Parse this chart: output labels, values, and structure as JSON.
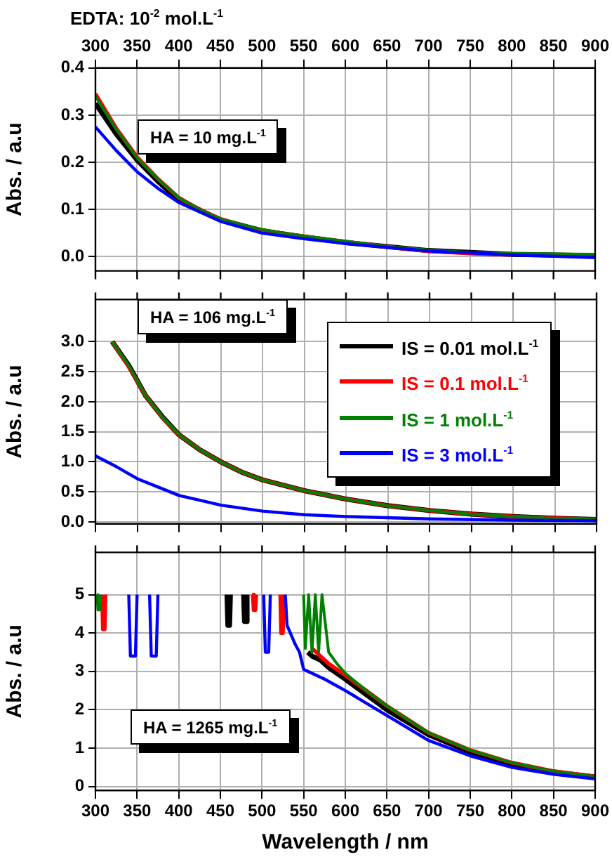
{
  "chart_data": [
    {
      "type": "line",
      "title": "EDTA: 10$^{-2}$ mol.L$^{-1}$",
      "ylabel": "Abs. / a.u",
      "annotations": [
        "HA = 10 mg.L$^{-1}$"
      ],
      "xlim": [
        300,
        900
      ],
      "xticks": [
        300,
        350,
        400,
        450,
        500,
        550,
        600,
        650,
        700,
        750,
        800,
        850,
        900
      ],
      "ylim": [
        -0.03,
        0.4
      ],
      "yticks": [
        {
          "value": 0,
          "label": "0.0"
        },
        0.1,
        0.2,
        0.3,
        0.4
      ],
      "grid": true,
      "series": [
        {
          "color": "#000000",
          "x": [
            300,
            325,
            350,
            375,
            400,
            450,
            500,
            550,
            600,
            700,
            800,
            900
          ],
          "values": [
            0.325,
            0.26,
            0.205,
            0.16,
            0.12,
            0.078,
            0.055,
            0.042,
            0.03,
            0.013,
            0.005,
            0.002
          ]
        },
        {
          "color": "#ff0000",
          "x": [
            300,
            325,
            350,
            375,
            400,
            425,
            450,
            475,
            500,
            525,
            550,
            600,
            650,
            700,
            750,
            800
          ],
          "values": [
            0.345,
            0.272,
            0.211,
            0.165,
            0.125,
            0.1,
            0.08,
            0.067,
            0.056,
            0.049,
            0.043,
            0.032,
            0.021,
            0.012,
            0.007,
            0.004
          ]
        },
        {
          "color": "#008000",
          "x": [
            300,
            325,
            350,
            375,
            400,
            425,
            450,
            475,
            500,
            525,
            550,
            600,
            650,
            700,
            750,
            800,
            850,
            900
          ],
          "values": [
            0.34,
            0.27,
            0.21,
            0.165,
            0.125,
            0.1,
            0.08,
            0.068,
            0.058,
            0.05,
            0.044,
            0.033,
            0.022,
            0.014,
            0.009,
            0.007,
            0.006,
            0.005
          ]
        },
        {
          "color": "#0000ff",
          "x": [
            300,
            325,
            350,
            375,
            400,
            450,
            500,
            550,
            600,
            700,
            800,
            900
          ],
          "values": [
            0.275,
            0.225,
            0.18,
            0.145,
            0.115,
            0.075,
            0.05,
            0.038,
            0.028,
            0.012,
            0.004,
            -0.002
          ]
        }
      ]
    },
    {
      "type": "line",
      "ylabel": "Abs. / a.u",
      "annotations": [
        "HA = 106 mg.L$^{-1}$"
      ],
      "legend": "right",
      "tick_labels": "y",
      "xlim": [
        300,
        900
      ],
      "xticks": [
        300,
        350,
        400,
        450,
        500,
        550,
        600,
        650,
        700,
        750,
        800,
        850,
        900
      ],
      "ylim": [
        -0.03,
        3.7
      ],
      "yticks": [
        {
          "value": 0,
          "label": "0.0"
        },
        0.5,
        {
          "value": 1,
          "label": "1.0"
        },
        1.5,
        {
          "value": 2,
          "label": "2.0"
        },
        2.5,
        {
          "value": 3,
          "label": "3.0"
        }
      ],
      "grid": true,
      "series": [
        {
          "name": "IS = 0.01 mol.L$^{-1}$",
          "color": "#000000",
          "x": [
            320,
            340,
            360,
            380,
            400,
            425,
            450,
            475,
            500,
            550,
            600,
            650,
            700,
            750,
            800,
            850,
            900
          ],
          "values": [
            3.0,
            2.6,
            2.1,
            1.75,
            1.45,
            1.2,
            1.0,
            0.83,
            0.7,
            0.52,
            0.38,
            0.27,
            0.19,
            0.13,
            0.09,
            0.06,
            0.04
          ]
        },
        {
          "name": "IS = 0.1 mol.L$^{-1}$",
          "color": "#ff0000",
          "x": [
            320,
            340,
            360,
            380,
            400,
            425,
            450,
            475,
            500,
            550,
            600,
            650,
            700,
            750,
            800,
            850,
            900
          ],
          "values": [
            3.0,
            2.58,
            2.1,
            1.74,
            1.45,
            1.2,
            1.0,
            0.83,
            0.7,
            0.52,
            0.38,
            0.27,
            0.19,
            0.13,
            0.09,
            0.06,
            0.04
          ]
        },
        {
          "name": "IS = 1 mol.L$^{-1}$",
          "color": "#008000",
          "x": [
            320,
            340,
            360,
            380,
            400,
            425,
            450,
            475,
            500,
            550,
            600,
            650,
            700,
            750,
            800,
            850,
            900
          ],
          "values": [
            3.0,
            2.6,
            2.1,
            1.75,
            1.45,
            1.2,
            1.0,
            0.83,
            0.7,
            0.52,
            0.38,
            0.27,
            0.19,
            0.13,
            0.09,
            0.06,
            0.04
          ]
        },
        {
          "name": "IS = 3 mol.L$^{-1}$",
          "color": "#0000ff",
          "x": [
            300,
            325,
            350,
            375,
            400,
            425,
            450,
            500,
            550,
            600,
            700,
            800,
            900
          ],
          "values": [
            1.1,
            0.92,
            0.72,
            0.58,
            0.44,
            0.36,
            0.28,
            0.18,
            0.12,
            0.09,
            0.05,
            0.03,
            0.02
          ]
        }
      ]
    },
    {
      "type": "line",
      "xlabel": "Wavelength / nm",
      "ylabel": "Abs. / a.u",
      "annotations": [
        "HA = 1265 mg.L$^{-1}$"
      ],
      "xlim": [
        300,
        900
      ],
      "xticks": [
        300,
        350,
        400,
        450,
        500,
        550,
        600,
        650,
        700,
        750,
        800,
        850,
        900
      ],
      "ylim": [
        -0.1,
        6.1
      ],
      "yticks": [
        0,
        1,
        2,
        3,
        4,
        5
      ],
      "grid": true,
      "series": [
        {
          "color": "#000000",
          "x": [
            458,
            459,
            461,
            462,
            null,
            478,
            479,
            481,
            482,
            null,
            555,
            560,
            570,
            580,
            600,
            625,
            650,
            700,
            750,
            800,
            850,
            900
          ],
          "values": [
            5,
            4.2,
            4.2,
            5,
            null,
            5,
            4.3,
            4.3,
            5,
            null,
            3.5,
            3.4,
            3.3,
            3.1,
            2.8,
            2.4,
            2.0,
            1.35,
            0.9,
            0.58,
            0.38,
            0.25
          ]
        },
        {
          "color": "#ff0000",
          "x": [
            308,
            309,
            311,
            312,
            null,
            489,
            490,
            492,
            493,
            null,
            522,
            523,
            525,
            526,
            null,
            560,
            565,
            580,
            600,
            625,
            650,
            700,
            750,
            800,
            850,
            900
          ],
          "values": [
            5,
            4.1,
            4.1,
            5,
            null,
            5,
            4.6,
            4.6,
            5,
            null,
            5,
            4.0,
            4.0,
            5,
            null,
            3.6,
            3.5,
            3.2,
            2.9,
            2.5,
            2.1,
            1.4,
            0.95,
            0.62,
            0.4,
            0.26
          ]
        },
        {
          "color": "#008000",
          "x": [
            302,
            303,
            305,
            306,
            null,
            550,
            552,
            556,
            560,
            564,
            568,
            572,
            580,
            590,
            600,
            625,
            650,
            700,
            750,
            800,
            850,
            900
          ],
          "values": [
            5,
            4.6,
            4.6,
            5,
            null,
            5,
            3.6,
            5,
            3.5,
            5,
            3.5,
            5,
            3.5,
            3.2,
            2.95,
            2.5,
            2.1,
            1.4,
            0.95,
            0.62,
            0.4,
            0.26
          ]
        },
        {
          "color": "#0000ff",
          "x": [
            340,
            342,
            348,
            350,
            null,
            365,
            367,
            373,
            375,
            null,
            502,
            504,
            508,
            510,
            null,
            528,
            530,
            540,
            545,
            550,
            575,
            600,
            650,
            700,
            750,
            800,
            850,
            900
          ],
          "values": [
            5,
            3.4,
            3.4,
            5,
            null,
            5,
            3.4,
            3.4,
            5,
            null,
            5,
            3.5,
            3.5,
            5,
            null,
            5,
            4.2,
            3.7,
            3.5,
            3.05,
            2.8,
            2.5,
            1.85,
            1.2,
            0.8,
            0.5,
            0.32,
            0.2
          ]
        }
      ]
    }
  ]
}
